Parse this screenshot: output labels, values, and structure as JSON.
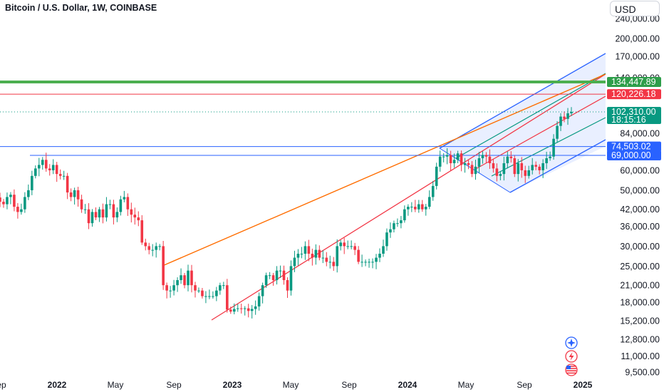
{
  "header": {
    "title": "Bitcoin / U.S. Dollar, 1W, COINBASE",
    "currency": "USD"
  },
  "chart_data": {
    "type": "candlestick",
    "title": "Bitcoin / U.S. Dollar, 1W, COINBASE",
    "y_scale": "log",
    "ylim": [
      9000,
      260000
    ],
    "y_ticks": [
      "240,000.00",
      "200,000.00",
      "170,000.00",
      "140,000.00",
      "84,000.00",
      "60,000.00",
      "50,000.00",
      "42,000.00",
      "36,000.00",
      "30,000.00",
      "25,000.00",
      "21,000.00",
      "18,000.00",
      "15,200.00",
      "12,800.00",
      "11,000.00",
      "9,500.00"
    ],
    "x_ticks": [
      {
        "label": "Sep",
        "date": "2021-09",
        "bold": false
      },
      {
        "label": "2022",
        "date": "2022-01",
        "bold": true
      },
      {
        "label": "May",
        "date": "2022-05",
        "bold": false
      },
      {
        "label": "Sep",
        "date": "2022-09",
        "bold": false
      },
      {
        "label": "2023",
        "date": "2023-01",
        "bold": true
      },
      {
        "label": "May",
        "date": "2023-05",
        "bold": false
      },
      {
        "label": "Sep",
        "date": "2023-09",
        "bold": false
      },
      {
        "label": "2024",
        "date": "2024-01",
        "bold": true
      },
      {
        "label": "May",
        "date": "2024-05",
        "bold": false
      },
      {
        "label": "Sep",
        "date": "2024-09",
        "bold": false
      },
      {
        "label": "2025",
        "date": "2025-01",
        "bold": true
      }
    ],
    "price_labels": [
      {
        "text": "134,447.89",
        "value": 134447.89,
        "color": "#2e9e4a"
      },
      {
        "text": "120,226.18",
        "value": 120226.18,
        "color": "#f23645"
      },
      {
        "text": "102,310.00",
        "sub": "18:15:16",
        "value": 102310,
        "color": "#089981"
      },
      {
        "text": "74,503.02",
        "value": 74503.02,
        "color": "#2962ff"
      },
      {
        "text": "69,000.00",
        "value": 69000,
        "color": "#2962ff"
      }
    ],
    "horizontal_lines": [
      {
        "value": 134447.89,
        "color": "#4caf50"
      },
      {
        "value": 120226.18,
        "color": "#f23645"
      },
      {
        "value": 102310,
        "color": "#089981"
      },
      {
        "value": 74503.02,
        "color": "#2962ff"
      }
    ],
    "series_close": [
      45000,
      44000,
      47000,
      48000,
      43000,
      41000,
      42000,
      47000,
      50000,
      57000,
      61000,
      63000,
      66000,
      61000,
      60000,
      63000,
      58000,
      57000,
      57000,
      49000,
      47000,
      50000,
      46000,
      42000,
      42000,
      37000,
      41000,
      39000,
      42000,
      39000,
      44000,
      44000,
      39000,
      41000,
      46000,
      47000,
      42000,
      40000,
      39000,
      38000,
      31000,
      30000,
      29000,
      29000,
      30000,
      30000,
      21000,
      20000,
      20000,
      21000,
      22000,
      23000,
      21000,
      24000,
      21000,
      20000,
      20000,
      19000,
      19000,
      19000,
      19000,
      20000,
      21000,
      21000,
      16800,
      16500,
      16900,
      17000,
      16900,
      17000,
      16600,
      16900,
      17300,
      19000,
      21000,
      23000,
      23000,
      22000,
      24000,
      24000,
      22000,
      20000,
      25000,
      27000,
      28000,
      28000,
      30000,
      28000,
      27000,
      29000,
      27000,
      27000,
      26000,
      26000,
      25000,
      30000,
      31000,
      30000,
      30000,
      30000,
      29000,
      26000,
      26000,
      26000,
      26000,
      26000,
      27000,
      28000,
      30000,
      34000,
      35000,
      37000,
      37000,
      38000,
      42000,
      43000,
      43000,
      42000,
      44000,
      42000,
      43000,
      47000,
      52000,
      62000,
      68000,
      68000,
      69000,
      64000,
      66000,
      70000,
      63000,
      64000,
      63000,
      58000,
      62000,
      67000,
      69000,
      68000,
      64000,
      61000,
      57000,
      58000,
      64000,
      68000,
      67000,
      58000,
      64000,
      60000,
      57000,
      60000,
      63000,
      62000,
      60000,
      64000,
      67000,
      68000,
      80000,
      90000,
      98000,
      96000,
      101000,
      102310
    ],
    "channels": [
      {
        "name": "",
        "color": "#2962ff",
        "type": "pitchfork"
      },
      {
        "name": "",
        "color": "#f23645",
        "type": "trend"
      },
      {
        "name": "",
        "color": "#ff6d00",
        "type": "trend"
      }
    ],
    "grid": false,
    "icons": [
      "sparkle-icon",
      "flash-icon",
      "us-flag-icon"
    ]
  }
}
